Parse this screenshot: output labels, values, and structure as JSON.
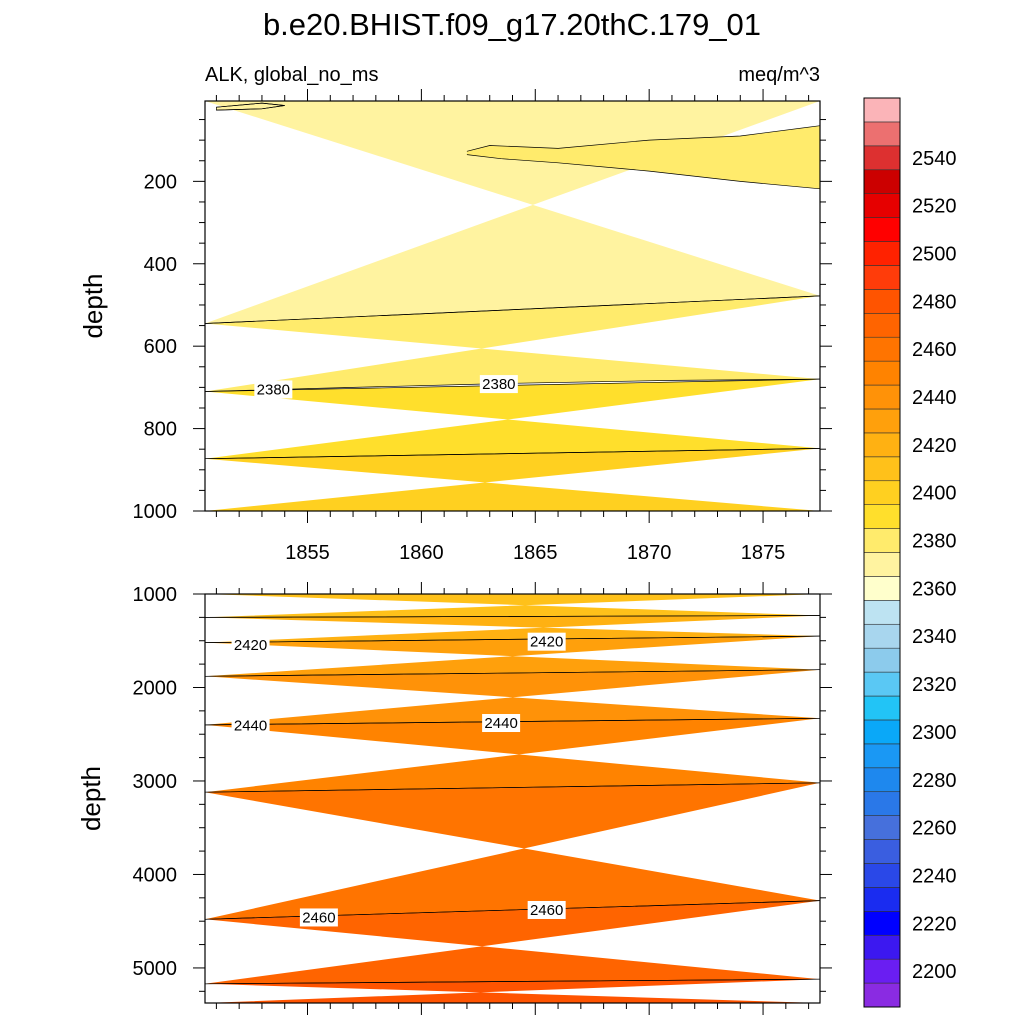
{
  "chart_data": {
    "type": "heatmap",
    "title": "b.e20.BHIST.f09_g17.20thC.179_01",
    "subtitle_left": "ALK, global_no_ms",
    "subtitle_right": "meq/m^3",
    "colorbar": {
      "levels": [
        2190,
        2200,
        2210,
        2220,
        2230,
        2240,
        2250,
        2260,
        2270,
        2280,
        2290,
        2300,
        2310,
        2320,
        2330,
        2340,
        2350,
        2360,
        2370,
        2380,
        2390,
        2400,
        2410,
        2420,
        2430,
        2440,
        2450,
        2460,
        2470,
        2480,
        2490,
        2500,
        2510,
        2520,
        2530,
        2540,
        2550,
        2560
      ],
      "colors": [
        "#8a2be2",
        "#6a1ef2",
        "#3c18f0",
        "#0000ff",
        "#1a2cf0",
        "#2a48e8",
        "#3a5ee0",
        "#4670dc",
        "#2a78e8",
        "#1e88ee",
        "#1a98f4",
        "#0aa8f8",
        "#22c4f6",
        "#5ac8f4",
        "#8ccbec",
        "#a8d6ee",
        "#bde3f2",
        "#ffffcc",
        "#fff3a0",
        "#ffeb6c",
        "#ffdf2c",
        "#ffd020",
        "#ffc11a",
        "#ffb112",
        "#ffa00c",
        "#ff9208",
        "#ff8300",
        "#ff7400",
        "#ff6400",
        "#ff5400",
        "#ff3c0a",
        "#ff2200",
        "#ff0000",
        "#e60000",
        "#cc0000",
        "#dd3030",
        "#ec7070",
        "#fbb4b8"
      ],
      "tick_labels": [
        "2200",
        "2220",
        "2240",
        "2260",
        "2280",
        "2300",
        "2320",
        "2340",
        "2360",
        "2380",
        "2400",
        "2420",
        "2440",
        "2460",
        "2480",
        "2500",
        "2520",
        "2540"
      ]
    },
    "panels": [
      {
        "ylabel": "depth",
        "xlim": [
          1850.5,
          1877.5
        ],
        "ylim": [
          1000,
          5
        ],
        "x_ticks": [
          "1855",
          "1860",
          "1865",
          "1870",
          "1875"
        ],
        "y_ticks": [
          "200",
          "400",
          "600",
          "800",
          "1000"
        ],
        "contour_labels": [
          "2380",
          "2380"
        ]
      },
      {
        "ylabel": "depth",
        "xlim": [
          1850.5,
          1877.5
        ],
        "ylim": [
          5375,
          1000
        ],
        "y_ticks": [
          "1000",
          "2000",
          "3000",
          "4000",
          "5000"
        ],
        "contour_labels": [
          "2420",
          "2420",
          "2440",
          "2440",
          "2460",
          "2460"
        ]
      }
    ],
    "bands": [
      {
        "panel": 0,
        "value": 2370,
        "upper": [
          [
            1850.5,
            5
          ],
          [
            1877.5,
            5
          ]
        ],
        "lower": [
          [
            1850.5,
            545
          ],
          [
            1877.5,
            478
          ]
        ]
      },
      {
        "panel": 0,
        "value": 2370,
        "upper": [
          [
            1851,
            20
          ],
          [
            1853,
            10
          ],
          [
            1854,
            16
          ],
          [
            1853,
            24
          ],
          [
            1851,
            27
          ]
        ],
        "lower": []
      },
      {
        "panel": 0,
        "value": 2380,
        "upper": [
          [
            1862,
            127
          ],
          [
            1863,
            113
          ],
          [
            1866,
            120
          ],
          [
            1870,
            100
          ],
          [
            1874,
            90
          ],
          [
            1877.5,
            65
          ]
        ],
        "lower": [
          [
            1877.5,
            218
          ],
          [
            1874,
            200
          ],
          [
            1870,
            175
          ],
          [
            1866,
            155
          ],
          [
            1863.5,
            145
          ],
          [
            1862,
            135
          ]
        ]
      },
      {
        "panel": 0,
        "value": 2380,
        "upper": [
          [
            1850.5,
            545
          ],
          [
            1877.5,
            478
          ]
        ],
        "lower": [
          [
            1850.5,
            710
          ],
          [
            1857,
            700
          ],
          [
            1864,
            690
          ],
          [
            1871,
            683
          ],
          [
            1877.5,
            680
          ]
        ]
      },
      {
        "panel": 0,
        "value": 2390,
        "upper": [
          [
            1850.5,
            710
          ],
          [
            1877.5,
            680
          ]
        ],
        "lower": [
          [
            1850.5,
            873
          ],
          [
            1877.5,
            848
          ]
        ]
      },
      {
        "panel": 0,
        "value": 2400,
        "upper": [
          [
            1850.5,
            873
          ],
          [
            1877.5,
            848
          ]
        ],
        "lower": [
          [
            1850.5,
            1000
          ],
          [
            1877.5,
            1000
          ]
        ]
      },
      {
        "panel": 1,
        "value": 2410,
        "upper": [
          [
            1850.5,
            1000
          ],
          [
            1877.5,
            1000
          ]
        ],
        "lower": [
          [
            1850.5,
            1250
          ],
          [
            1877.5,
            1230
          ]
        ]
      },
      {
        "panel": 1,
        "value": 2420,
        "upper": [
          [
            1850.5,
            1250
          ],
          [
            1877.5,
            1230
          ]
        ],
        "lower": [
          [
            1850.5,
            1520
          ],
          [
            1877.5,
            1450
          ]
        ]
      },
      {
        "panel": 1,
        "value": 2430,
        "upper": [
          [
            1850.5,
            1520
          ],
          [
            1877.5,
            1450
          ]
        ],
        "lower": [
          [
            1850.5,
            1880
          ],
          [
            1877.5,
            1810
          ]
        ]
      },
      {
        "panel": 1,
        "value": 2440,
        "upper": [
          [
            1850.5,
            1880
          ],
          [
            1877.5,
            1810
          ]
        ],
        "lower": [
          [
            1850.5,
            2400
          ],
          [
            1877.5,
            2330
          ]
        ]
      },
      {
        "panel": 1,
        "value": 2450,
        "upper": [
          [
            1850.5,
            2400
          ],
          [
            1877.5,
            2330
          ]
        ],
        "lower": [
          [
            1850.5,
            3120
          ],
          [
            1877.5,
            3020
          ]
        ]
      },
      {
        "panel": 1,
        "value": 2460,
        "upper": [
          [
            1850.5,
            3120
          ],
          [
            1877.5,
            3020
          ]
        ],
        "lower": [
          [
            1850.5,
            4480
          ],
          [
            1877.5,
            4280
          ]
        ]
      },
      {
        "panel": 1,
        "value": 2470,
        "upper": [
          [
            1850.5,
            4480
          ],
          [
            1877.5,
            4280
          ]
        ],
        "lower": [
          [
            1850.5,
            5170
          ],
          [
            1877.5,
            5120
          ]
        ]
      },
      {
        "panel": 1,
        "value": 2480,
        "upper": [
          [
            1850.5,
            5170
          ],
          [
            1877.5,
            5120
          ]
        ],
        "lower": [
          [
            1850.5,
            5375
          ],
          [
            1877.5,
            5375
          ]
        ]
      }
    ],
    "contour_label_positions": [
      {
        "panel": 0,
        "text": "2380",
        "x": 1853.5,
        "y": 705
      },
      {
        "panel": 0,
        "text": "2380",
        "x": 1863.4,
        "y": 692
      },
      {
        "panel": 1,
        "text": "2420",
        "x": 1852.5,
        "y": 1545
      },
      {
        "panel": 1,
        "text": "2420",
        "x": 1865.5,
        "y": 1510
      },
      {
        "panel": 1,
        "text": "2440",
        "x": 1852.5,
        "y": 2405
      },
      {
        "panel": 1,
        "text": "2440",
        "x": 1863.5,
        "y": 2380
      },
      {
        "panel": 1,
        "text": "2460",
        "x": 1855.5,
        "y": 4460
      },
      {
        "panel": 1,
        "text": "2460",
        "x": 1865.5,
        "y": 4380
      }
    ]
  }
}
